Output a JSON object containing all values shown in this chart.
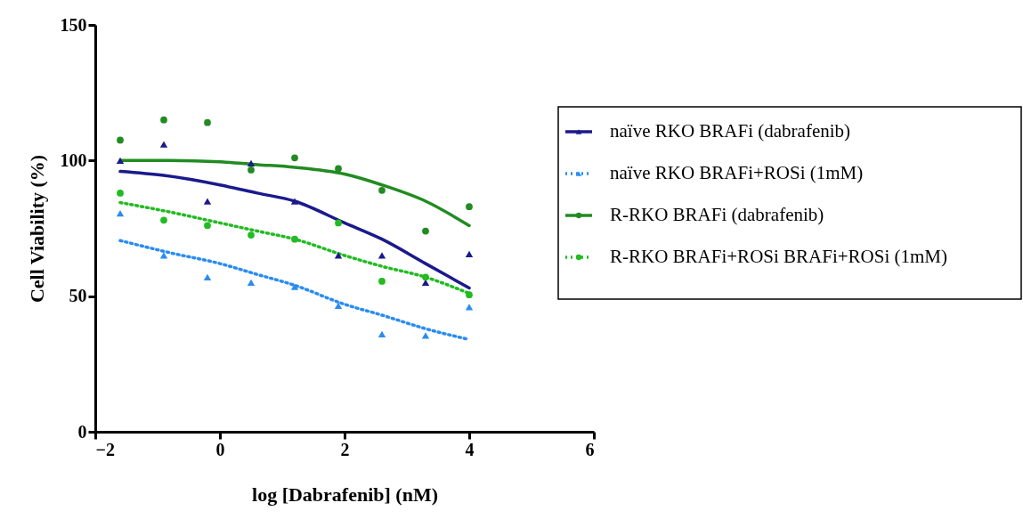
{
  "chart_data": {
    "type": "scatter",
    "xlabel": "log [Dabrafenib] (nM)",
    "ylabel": "Cell Viability (%)",
    "xlim": [
      -2,
      6
    ],
    "xticks": [
      -2,
      0,
      2,
      4,
      6
    ],
    "ylim": [
      0,
      150
    ],
    "yticks": [
      0,
      50,
      100,
      150
    ],
    "grid": false,
    "legend": "right",
    "x": [
      -1.6,
      -0.9,
      -0.2,
      0.5,
      1.2,
      1.9,
      2.6,
      3.3,
      4.0
    ],
    "series": [
      {
        "name": "naïve RKO BRAFi (dabrafenib)",
        "marker": "triangle",
        "line_style": "solid",
        "color": "#1a1a8c",
        "values": [
          100,
          106,
          85,
          99,
          85,
          65,
          65,
          55,
          65.5
        ]
      },
      {
        "name": "naïve RKO BRAFi+ROSi (1mM)",
        "marker": "triangle",
        "line_style": "dotted",
        "color": "#2a8cf0",
        "values": [
          80.5,
          65,
          57,
          55,
          53.5,
          46.5,
          36,
          35.5,
          46
        ]
      },
      {
        "name": "R-RKO BRAFi (dabrafenib)",
        "marker": "circle",
        "line_style": "solid",
        "color": "#228b22",
        "values": [
          107.5,
          115,
          114,
          96.5,
          101,
          97,
          89,
          74,
          83
        ]
      },
      {
        "name": "R-RKO  BRAFi+ROSi BRAFi+ROSi (1mM)",
        "marker": "circle",
        "line_style": "dotted",
        "color": "#22bb22",
        "values": [
          88,
          78,
          76,
          72.5,
          71,
          77,
          55.5,
          57,
          50.5
        ]
      },
      {
        "type": "line",
        "line_style": "solid",
        "color": "#1a1a8c",
        "x": [
          -1.6,
          -0.9,
          0,
          0.6,
          1.2,
          2,
          2.6,
          3.3,
          4
        ],
        "values": [
          96,
          94.5,
          91,
          88,
          85,
          77,
          71,
          62,
          53
        ]
      },
      {
        "type": "line",
        "line_style": "dotted",
        "color": "#2a8cf0",
        "x": [
          -1.6,
          -0.8,
          0,
          0.6,
          1.2,
          2,
          2.6,
          3.3,
          4
        ],
        "values": [
          70.5,
          66,
          62,
          58,
          54,
          47,
          43,
          38,
          34
        ]
      },
      {
        "type": "line",
        "line_style": "solid",
        "color": "#228b22",
        "x": [
          -1.6,
          -0.8,
          0,
          0.6,
          1.2,
          2,
          2.6,
          3.3,
          4
        ],
        "values": [
          100,
          100,
          99.5,
          98.5,
          97.5,
          95,
          91,
          85,
          76
        ]
      },
      {
        "type": "line",
        "line_style": "dotted",
        "color": "#22bb22",
        "x": [
          -1.6,
          -0.8,
          0,
          0.6,
          1.2,
          2,
          2.6,
          3.3,
          4
        ],
        "values": [
          84.5,
          81,
          77,
          74,
          71,
          65,
          61,
          57,
          51
        ]
      }
    ]
  }
}
